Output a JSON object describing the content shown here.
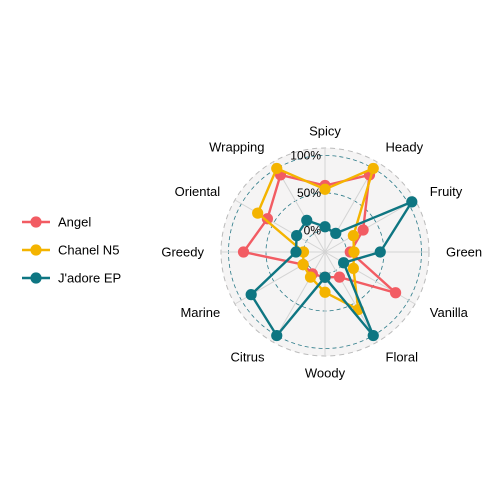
{
  "chart_data": {
    "type": "radar",
    "axes": [
      "Spicy",
      "Heady",
      "Fruity",
      "Green",
      "Vanilla",
      "Floral",
      "Woody",
      "Citrus",
      "Marine",
      "Greedy",
      "Oriental",
      "Wrapping"
    ],
    "grid_ticks": [
      {
        "value": 0,
        "label": "0%"
      },
      {
        "value": 0.5,
        "label": "50%"
      },
      {
        "value": 1,
        "label": "100%"
      }
    ],
    "range": [
      -0.1,
      1.1
    ],
    "legend_position": "left",
    "series": [
      {
        "name": "Angel",
        "color": "#F25C63",
        "values": [
          0.6,
          0.9,
          0.3,
          0.05,
          0.8,
          0.1,
          0.05,
          0.05,
          0.05,
          0.8,
          0.6,
          0.9
        ]
      },
      {
        "name": "Chanel N5",
        "color": "#F4B400",
        "values": [
          0.55,
          1.0,
          0.15,
          0.1,
          0.15,
          0.6,
          0.25,
          0.1,
          0.05,
          0.0,
          0.75,
          1.0
        ]
      },
      {
        "name": "J'adore EP",
        "color": "#0E7682",
        "values": [
          0.05,
          0.0,
          1.05,
          0.45,
          0.0,
          1.0,
          0.05,
          1.0,
          0.85,
          0.1,
          0.15,
          0.2
        ]
      }
    ]
  }
}
